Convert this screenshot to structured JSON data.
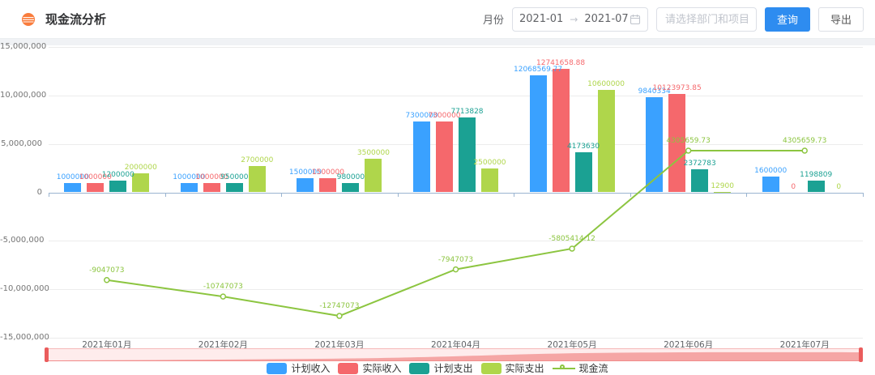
{
  "header": {
    "title": "现金流分析"
  },
  "toolbar": {
    "month_label": "月份",
    "date_start": "2021-01",
    "range_arrow": "→",
    "date_end": "2021-07",
    "project_placeholder": "请选择部门和项目",
    "query_label": "查询",
    "export_label": "导出"
  },
  "colors": {
    "primary": "#2e8cf0",
    "app_icon": "#f97c3c",
    "datazoom_fill": "#ec5f5d"
  },
  "chart_data": {
    "type": "bar+line",
    "categories": [
      "2021年01月",
      "2021年02月",
      "2021年03月",
      "2021年04月",
      "2021年05月",
      "2021年06月",
      "2021年07月"
    ],
    "series": [
      {
        "name": "计划收入",
        "type": "bar",
        "color": "#3aa1ff",
        "values": [
          1000000,
          1000000,
          1500000,
          7300000,
          12068569.77,
          9840334,
          1600000
        ]
      },
      {
        "name": "实际收入",
        "type": "bar",
        "color": "#f5686c",
        "values": [
          1000000,
          1000000,
          1500000,
          7300000,
          12741658.88,
          10123973.85,
          0
        ]
      },
      {
        "name": "计划支出",
        "type": "bar",
        "color": "#1ba193",
        "values": [
          1200000,
          950000,
          980000,
          7713828,
          4173630,
          2372783,
          1198809
        ]
      },
      {
        "name": "实际支出",
        "type": "bar",
        "color": "#afd64b",
        "values": [
          2000000,
          2700000,
          3500000,
          2500000,
          10600000,
          12900,
          0
        ]
      },
      {
        "name": "现金流",
        "type": "line",
        "color": "#8cc540",
        "values": [
          -9047073,
          -10747073,
          -12747073,
          -7947073,
          -5805414.12,
          4305659.73,
          4305659.73
        ]
      }
    ],
    "title": "现金流分析",
    "xlabel": "",
    "ylabel": "",
    "ylim": [
      -15000000,
      15000000
    ],
    "ytick_step": 5000000,
    "grid": true,
    "legend_position": "bottom"
  }
}
